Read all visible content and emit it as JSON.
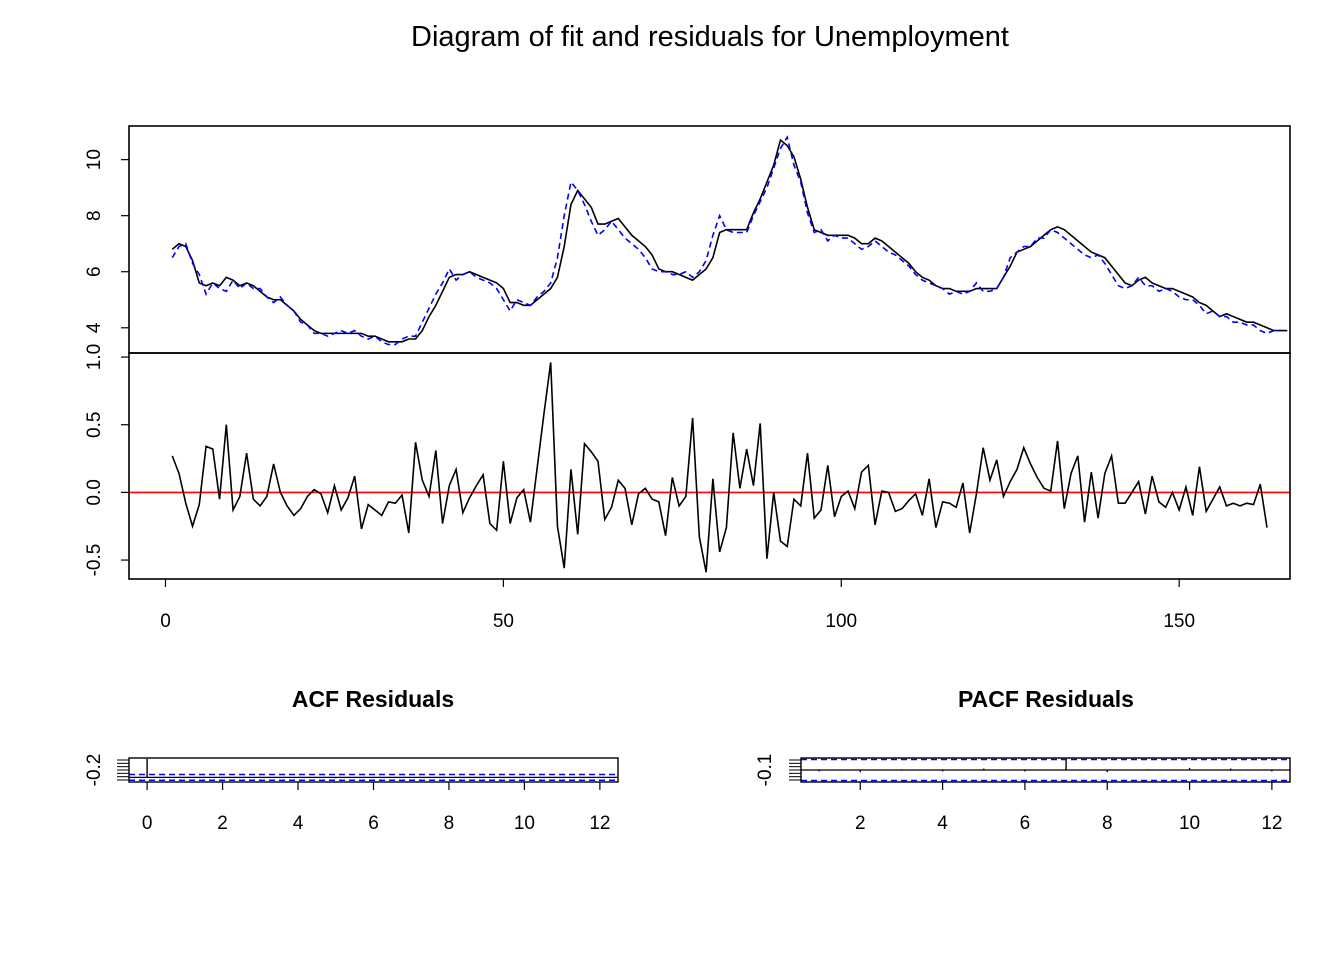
{
  "title": "Diagram of fit and residuals for Unemployment",
  "colors": {
    "actual": "#000000",
    "fitted": "#0000ff",
    "zero_line": "#ff0000",
    "ci": "#0000ff"
  },
  "chart_data": [
    {
      "type": "line",
      "panel": "fit",
      "title": "",
      "xlabel": "",
      "ylabel": "",
      "xlim": [
        -5.4,
        166.4
      ],
      "ylim": [
        3.1,
        11.2
      ],
      "x_start": 1,
      "yticks": [
        "4",
        "6",
        "8",
        "10"
      ],
      "series": [
        {
          "style": "solid",
          "color": "#000000",
          "values": [
            6.8,
            7.0,
            6.9,
            6.4,
            5.6,
            5.5,
            5.6,
            5.5,
            5.8,
            5.7,
            5.5,
            5.6,
            5.5,
            5.3,
            5.1,
            5.0,
            5.0,
            4.8,
            4.6,
            4.3,
            4.1,
            3.9,
            3.8,
            3.8,
            3.8,
            3.8,
            3.8,
            3.8,
            3.8,
            3.7,
            3.7,
            3.6,
            3.5,
            3.5,
            3.5,
            3.6,
            3.6,
            3.9,
            4.4,
            4.8,
            5.3,
            5.8,
            5.9,
            5.9,
            6.0,
            5.9,
            5.8,
            5.7,
            5.6,
            5.4,
            4.9,
            4.9,
            4.8,
            4.8,
            5.0,
            5.2,
            5.4,
            5.8,
            6.9,
            8.4,
            8.9,
            8.6,
            8.3,
            7.7,
            7.7,
            7.8,
            7.9,
            7.6,
            7.3,
            7.1,
            6.9,
            6.6,
            6.1,
            6.0,
            6.0,
            5.9,
            5.8,
            5.7,
            5.9,
            6.1,
            6.5,
            7.4,
            7.5,
            7.5,
            7.5,
            7.5,
            8.1,
            8.6,
            9.2,
            9.8,
            10.7,
            10.5,
            10.1,
            9.3,
            8.3,
            7.5,
            7.4,
            7.3,
            7.3,
            7.3,
            7.3,
            7.2,
            7.0,
            7.0,
            7.2,
            7.1,
            6.9,
            6.7,
            6.5,
            6.3,
            6.0,
            5.8,
            5.7,
            5.5,
            5.4,
            5.4,
            5.3,
            5.3,
            5.3,
            5.4,
            5.4,
            5.4,
            5.4,
            5.8,
            6.2,
            6.7,
            6.8,
            6.9,
            7.1,
            7.3,
            7.5,
            7.6,
            7.5,
            7.3,
            7.1,
            6.9,
            6.7,
            6.6,
            6.5,
            6.2,
            5.9,
            5.6,
            5.5,
            5.7,
            5.8,
            5.6,
            5.5,
            5.4,
            5.4,
            5.3,
            5.2,
            5.1,
            4.9,
            4.8,
            4.6,
            4.4,
            4.5,
            4.4,
            4.3,
            4.2,
            4.2,
            4.1,
            4.0,
            3.9,
            3.9,
            3.9
          ]
        },
        {
          "style": "dashed",
          "color": "#0000ff",
          "values": [
            6.5,
            6.9,
            7.0,
            6.3,
            5.9,
            5.2,
            5.6,
            5.4,
            5.3,
            5.7,
            5.4,
            5.6,
            5.4,
            5.4,
            5.1,
            4.9,
            5.1,
            4.8,
            4.6,
            4.2,
            4.1,
            3.8,
            3.8,
            3.7,
            3.8,
            3.9,
            3.8,
            3.9,
            3.7,
            3.6,
            3.7,
            3.5,
            3.4,
            3.4,
            3.6,
            3.7,
            3.7,
            4.2,
            4.7,
            5.2,
            5.6,
            6.1,
            5.7,
            5.9,
            6.0,
            5.8,
            5.7,
            5.6,
            5.4,
            5.0,
            4.6,
            5.0,
            4.9,
            4.8,
            5.1,
            5.3,
            5.6,
            6.5,
            8.0,
            9.2,
            8.9,
            8.4,
            7.8,
            7.3,
            7.5,
            7.8,
            7.5,
            7.2,
            7.0,
            6.8,
            6.5,
            6.1,
            6.0,
            6.0,
            5.9,
            5.9,
            6.0,
            5.8,
            6.0,
            6.4,
            7.3,
            8.0,
            7.5,
            7.4,
            7.4,
            7.4,
            8.0,
            8.5,
            9.0,
            9.7,
            10.4,
            10.8,
            9.8,
            9.2,
            8.1,
            7.4,
            7.5,
            7.1,
            7.3,
            7.2,
            7.2,
            7.0,
            6.8,
            6.9,
            7.1,
            6.9,
            6.7,
            6.6,
            6.4,
            6.2,
            5.9,
            5.7,
            5.6,
            5.5,
            5.4,
            5.2,
            5.3,
            5.2,
            5.3,
            5.6,
            5.3,
            5.3,
            5.4,
            5.8,
            6.5,
            6.7,
            6.9,
            6.9,
            7.2,
            7.2,
            7.5,
            7.4,
            7.2,
            7.0,
            6.8,
            6.6,
            6.5,
            6.6,
            6.3,
            5.9,
            5.5,
            5.4,
            5.5,
            5.8,
            5.5,
            5.5,
            5.3,
            5.4,
            5.3,
            5.1,
            5.0,
            5.0,
            4.8,
            4.5,
            4.6,
            4.4,
            4.4,
            4.2,
            4.2,
            4.1,
            4.1,
            3.9,
            3.8,
            3.9,
            3.9
          ]
        }
      ]
    },
    {
      "type": "line",
      "panel": "residuals",
      "title": "",
      "xlabel": "",
      "ylabel": "",
      "xlim": [
        -5.4,
        166.4
      ],
      "ylim": [
        -0.64,
        1.03
      ],
      "x_start": 1,
      "xticks": [
        "0",
        "50",
        "100",
        "150"
      ],
      "yticks": [
        "-0.5",
        "0.0",
        "0.5",
        "1.0"
      ],
      "reference_line": 0,
      "values": [
        0.27,
        0.14,
        -0.08,
        -0.25,
        -0.09,
        0.34,
        0.32,
        -0.05,
        0.5,
        -0.13,
        -0.03,
        0.29,
        -0.05,
        -0.1,
        -0.03,
        0.21,
        0.0,
        -0.1,
        -0.17,
        -0.12,
        -0.03,
        0.02,
        -0.01,
        -0.15,
        0.05,
        -0.13,
        -0.04,
        0.12,
        -0.27,
        -0.09,
        -0.13,
        -0.17,
        -0.07,
        -0.08,
        -0.02,
        -0.3,
        0.37,
        0.09,
        -0.03,
        0.31,
        -0.23,
        0.05,
        0.17,
        -0.15,
        -0.04,
        0.05,
        0.13,
        -0.23,
        -0.28,
        0.23,
        -0.23,
        -0.04,
        0.02,
        -0.22,
        0.18,
        0.58,
        0.96,
        -0.25,
        -0.56,
        0.17,
        -0.31,
        0.36,
        0.3,
        0.23,
        -0.2,
        -0.11,
        0.09,
        0.03,
        -0.24,
        -0.01,
        0.03,
        -0.05,
        -0.07,
        -0.32,
        0.11,
        -0.1,
        -0.03,
        0.55,
        -0.33,
        -0.59,
        0.1,
        -0.44,
        -0.26,
        0.44,
        0.03,
        0.32,
        0.05,
        0.51,
        -0.49,
        0.0,
        -0.36,
        -0.4,
        -0.05,
        -0.1,
        0.29,
        -0.19,
        -0.13,
        0.2,
        -0.18,
        -0.03,
        0.01,
        -0.12,
        0.15,
        0.2,
        -0.24,
        0.01,
        0.0,
        -0.14,
        -0.12,
        -0.06,
        -0.01,
        -0.17,
        0.1,
        -0.26,
        -0.07,
        -0.08,
        -0.11,
        0.07,
        -0.3,
        -0.01,
        0.33,
        0.09,
        0.24,
        -0.03,
        0.08,
        0.17,
        0.33,
        0.21,
        0.11,
        0.03,
        0.01,
        0.38,
        -0.12,
        0.14,
        0.27,
        -0.22,
        0.15,
        -0.19,
        0.14,
        0.27,
        -0.08,
        -0.08,
        0.0,
        0.08,
        -0.16,
        0.12,
        -0.07,
        -0.11,
        0.0,
        -0.13,
        0.04,
        -0.17,
        0.19,
        -0.14,
        -0.05,
        0.04,
        -0.1,
        -0.08,
        -0.1,
        -0.08,
        -0.09,
        0.06,
        -0.26
      ]
    },
    {
      "type": "bar",
      "panel": "acf",
      "title": "ACF Residuals",
      "xlabel": "",
      "ylabel": "",
      "xlim": [
        -0.48,
        12.48
      ],
      "ylim": [
        -0.25,
        1.05
      ],
      "lags": [
        0,
        1,
        2,
        3,
        4,
        5,
        6,
        7,
        8,
        9,
        10,
        11,
        12
      ],
      "values": [
        1.0,
        -0.02,
        -0.03,
        0.01,
        -0.02,
        -0.05,
        0.03,
        -0.01,
        -0.04,
        0.02,
        -0.03,
        0.01,
        -0.02
      ],
      "ci": 0.155,
      "xticks": [
        "0",
        "2",
        "4",
        "6",
        "8",
        "10",
        "12"
      ],
      "yticks": [
        "-0.2"
      ]
    },
    {
      "type": "bar",
      "panel": "pacf",
      "title": "PACF Residuals",
      "xlabel": "",
      "ylabel": "",
      "xlim": [
        0.56,
        12.44
      ],
      "ylim": [
        -0.167,
        0.167
      ],
      "lags": [
        1,
        2,
        3,
        4,
        5,
        6,
        7,
        8,
        9,
        10,
        11,
        12
      ],
      "values": [
        -0.02,
        -0.03,
        0.01,
        -0.02,
        0.02,
        -0.02,
        0.15,
        -0.03,
        0.01,
        0.03,
        0.02,
        -0.02
      ],
      "ci": 0.155,
      "xticks": [
        "2",
        "4",
        "6",
        "8",
        "10",
        "12"
      ],
      "yticks": [
        "-0.1"
      ]
    }
  ]
}
